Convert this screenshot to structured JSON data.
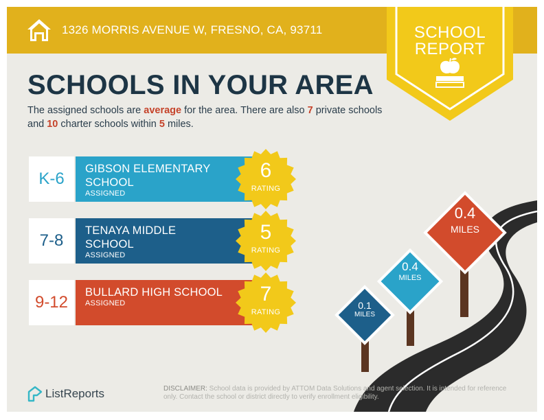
{
  "header": {
    "address": "1326 MORRIS AVENUE W, FRESNO, CA, 93711",
    "badge_line1": "SCHOOL",
    "badge_line2": "REPORT",
    "icon": "home-icon"
  },
  "title": "SCHOOLS IN YOUR AREA",
  "summary": {
    "text1": "The assigned schools are ",
    "quality": "average",
    "text2": " for the area. There are also ",
    "private_count": "7",
    "text3": " private schools and ",
    "charter_count": "10",
    "text4": " charter schools within ",
    "miles": "5",
    "text5": " miles."
  },
  "schools": [
    {
      "grades": "K-6",
      "name_line1": "GIBSON ELEMENTARY",
      "name_line2": "SCHOOL",
      "status": "ASSIGNED",
      "rating": "6",
      "rating_label": "RATING",
      "color": "#2aa3c9",
      "grade_color": "#2aa3c9"
    },
    {
      "grades": "7-8",
      "name_line1": "TENAYA MIDDLE",
      "name_line2": "SCHOOL",
      "status": "ASSIGNED",
      "rating": "5",
      "rating_label": "RATING",
      "color": "#1d5f8a",
      "grade_color": "#1d5f8a"
    },
    {
      "grades": "9-12",
      "name_line1": "BULLARD HIGH SCHOOL",
      "name_line2": "",
      "status": "ASSIGNED",
      "rating": "7",
      "rating_label": "RATING",
      "color": "#d24b2c",
      "grade_color": "#d24b2c"
    }
  ],
  "signs": [
    {
      "distance": "0.1",
      "unit": "MILES",
      "color": "#1d5f8a"
    },
    {
      "distance": "0.4",
      "unit": "MILES",
      "color": "#2aa3c9"
    },
    {
      "distance": "0.4",
      "unit": "MILES",
      "color": "#d24b2c"
    }
  ],
  "footer": {
    "brand": "ListReports",
    "disclaimer_lead": "DISCLAIMER:",
    "disclaimer_text": " School data is provided by ATTOM Data Solutions and agent selection. It is intended for reference only. Contact the school or district directly to verify enrollment eligibility."
  },
  "colors": {
    "header": "#e1b11c",
    "badge_yellow": "#f2c91a",
    "accent_red": "#c5432a",
    "navy": "#1d3545"
  }
}
